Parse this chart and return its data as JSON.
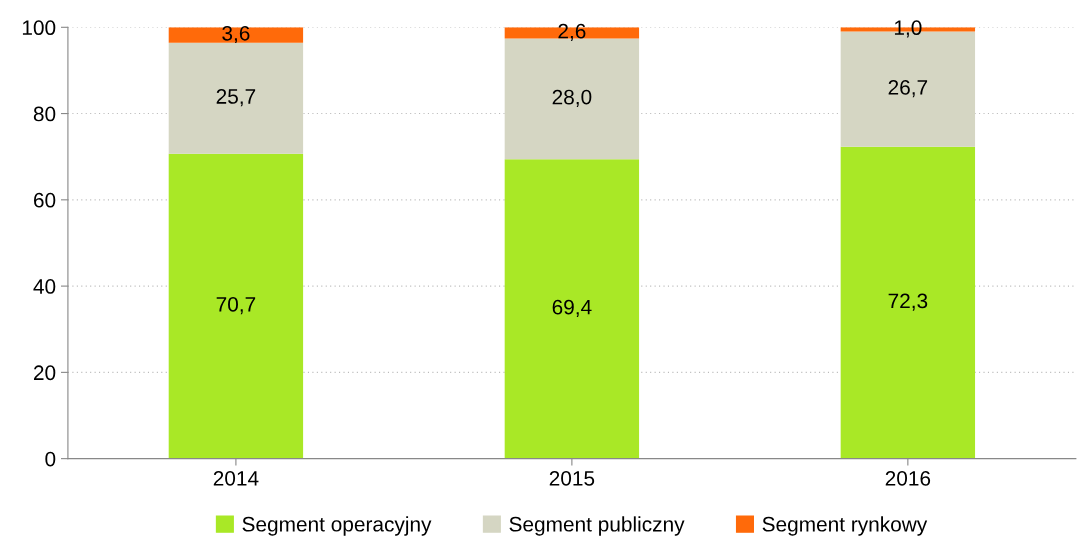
{
  "chart_data": {
    "type": "bar",
    "stacked": true,
    "categories": [
      "2014",
      "2015",
      "2016"
    ],
    "series": [
      {
        "name": "Segment operacyjny",
        "color": "#a9e826",
        "values": [
          70.7,
          69.4,
          72.3
        ],
        "value_labels": [
          "70,7",
          "69,4",
          "72,3"
        ]
      },
      {
        "name": "Segment publiczny",
        "color": "#d5d6c3",
        "values": [
          25.7,
          28.0,
          26.7
        ],
        "value_labels": [
          "25,7",
          "28,0",
          "26,7"
        ]
      },
      {
        "name": "Segment rynkowy",
        "color": "#ff6a0a",
        "values": [
          3.6,
          2.6,
          1.0
        ],
        "value_labels": [
          "3,6",
          "2,6",
          "1,0"
        ]
      }
    ],
    "ylim": [
      0,
      100
    ],
    "yticks": [
      0,
      20,
      40,
      60,
      80,
      100
    ],
    "grid": "y",
    "legend": "bottom"
  }
}
